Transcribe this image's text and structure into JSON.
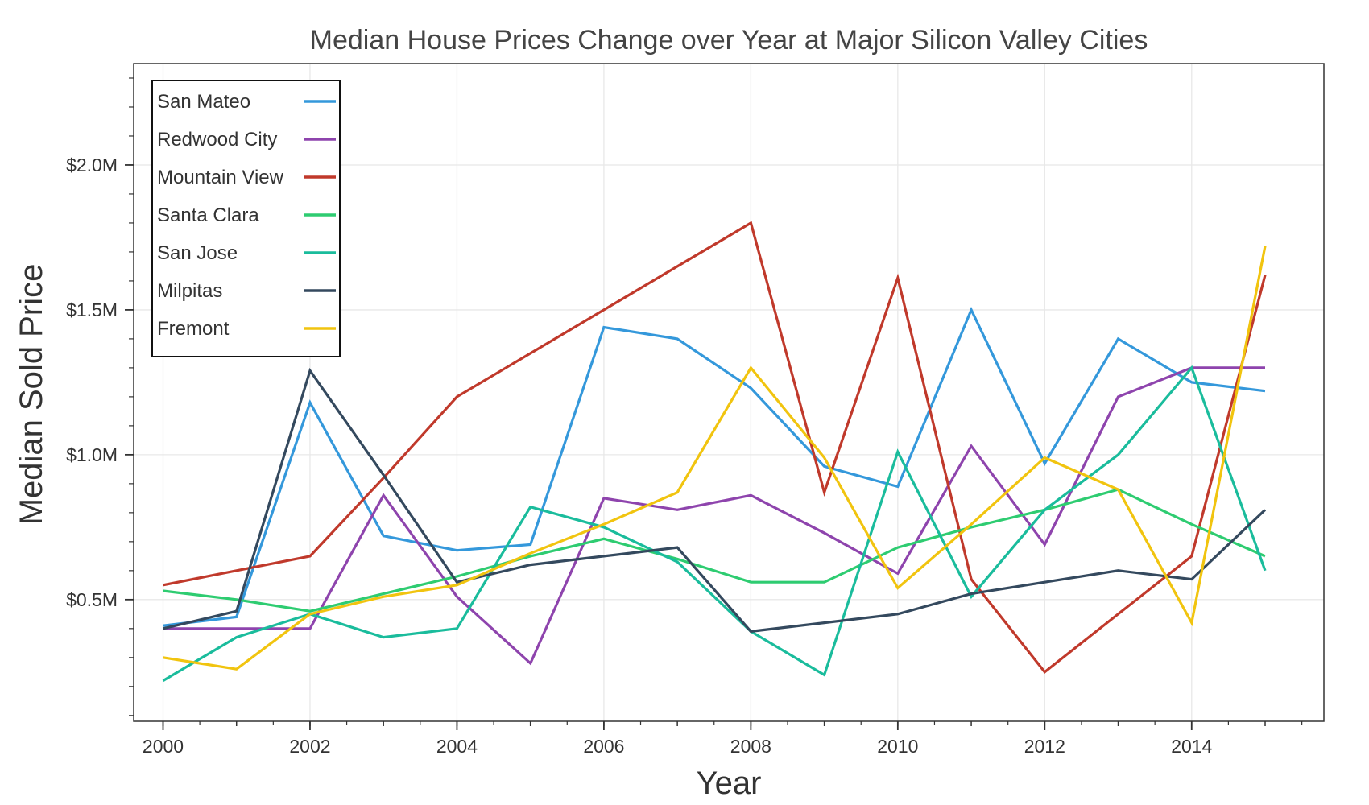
{
  "chart_data": {
    "type": "line",
    "title": "Median House Prices Change over Year at Major Silicon Valley Cities",
    "xlabel": "Year",
    "ylabel": "Median Sold Price",
    "x": [
      2000,
      2001,
      2002,
      2003,
      2004,
      2005,
      2006,
      2007,
      2008,
      2009,
      2010,
      2011,
      2012,
      2013,
      2014,
      2015
    ],
    "xlim": [
      1999.6,
      2015.8
    ],
    "ylim": [
      0.08,
      2.35
    ],
    "x_ticks": [
      {
        "value": 2000,
        "label": "2000"
      },
      {
        "value": 2002,
        "label": "2002"
      },
      {
        "value": 2004,
        "label": "2004"
      },
      {
        "value": 2006,
        "label": "2006"
      },
      {
        "value": 2008,
        "label": "2008"
      },
      {
        "value": 2010,
        "label": "2010"
      },
      {
        "value": 2012,
        "label": "2012"
      },
      {
        "value": 2014,
        "label": "2014"
      }
    ],
    "y_ticks": [
      {
        "value": 0.5,
        "label": "$0.5M"
      },
      {
        "value": 1.0,
        "label": "$1.0M"
      },
      {
        "value": 1.5,
        "label": "$1.5M"
      },
      {
        "value": 2.0,
        "label": "$2.0M"
      }
    ],
    "grid": true,
    "legend_position": "top-left",
    "series": [
      {
        "name": "San Mateo",
        "color": "#3498db",
        "values": [
          0.41,
          0.44,
          1.18,
          0.72,
          0.67,
          0.69,
          1.44,
          1.4,
          1.23,
          0.96,
          0.89,
          1.5,
          0.97,
          1.4,
          1.25,
          1.22
        ]
      },
      {
        "name": "Redwood City",
        "color": "#8e44ad",
        "values": [
          0.4,
          0.4,
          0.4,
          0.86,
          0.51,
          0.28,
          0.85,
          0.81,
          0.86,
          0.73,
          0.59,
          1.03,
          0.69,
          1.2,
          1.3,
          1.3
        ]
      },
      {
        "name": "Mountain View",
        "color": "#c0392b",
        "values": [
          0.55,
          0.6,
          0.65,
          0.92,
          1.2,
          1.35,
          1.5,
          1.65,
          1.8,
          0.87,
          1.61,
          0.57,
          0.25,
          0.45,
          0.65,
          1.62
        ]
      },
      {
        "name": "Santa Clara",
        "color": "#2ecc71",
        "values": [
          0.53,
          0.5,
          0.46,
          0.52,
          0.58,
          0.65,
          0.71,
          0.64,
          0.56,
          0.56,
          0.68,
          0.75,
          0.81,
          0.88,
          0.76,
          0.65
        ]
      },
      {
        "name": "San Jose",
        "color": "#1abc9c",
        "values": [
          0.22,
          0.37,
          0.45,
          0.37,
          0.4,
          0.82,
          0.75,
          0.63,
          0.39,
          0.24,
          1.01,
          0.51,
          0.81,
          1.0,
          1.3,
          0.6
        ]
      },
      {
        "name": "Milpitas",
        "color": "#34495e",
        "values": [
          0.4,
          0.46,
          1.29,
          0.93,
          0.56,
          0.62,
          0.65,
          0.68,
          0.39,
          0.42,
          0.45,
          0.52,
          0.56,
          0.6,
          0.57,
          0.81
        ]
      },
      {
        "name": "Fremont",
        "color": "#f1c40f",
        "values": [
          0.3,
          0.26,
          0.45,
          0.51,
          0.55,
          0.66,
          0.76,
          0.87,
          1.3,
          0.99,
          0.54,
          0.76,
          0.99,
          0.88,
          0.42,
          1.72
        ]
      }
    ]
  }
}
